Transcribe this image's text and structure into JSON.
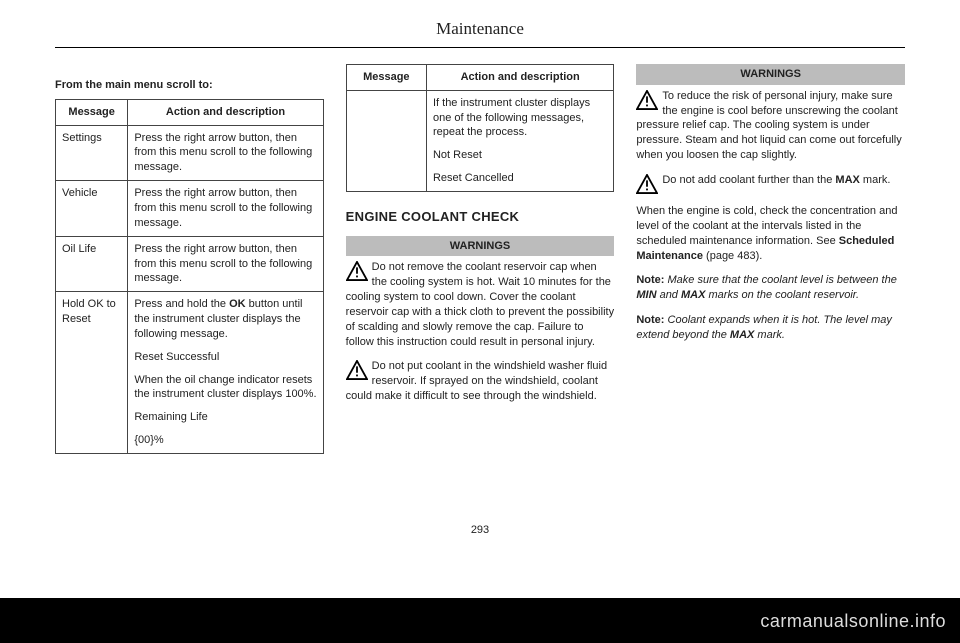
{
  "chapter_title": "Maintenance",
  "page_number": "293",
  "watermark": "carmanualsonline.info",
  "col1": {
    "intro": "From the main menu scroll to:",
    "headers": {
      "c1": "Message",
      "c2": "Action and description"
    },
    "rows": [
      {
        "msg": "Settings",
        "desc": [
          "Press the right arrow button, then from this menu scroll to the following message."
        ]
      },
      {
        "msg": "Vehicle",
        "desc": [
          "Press the right arrow button, then from this menu scroll to the following message."
        ]
      },
      {
        "msg": "Oil Life",
        "desc": [
          "Press the right arrow button, then from this menu scroll to the following message."
        ]
      },
      {
        "msg": "Hold OK to Reset",
        "desc": [
          "Press and hold the <b>OK</b> button until the instrument cluster displays the following message.",
          "Reset Successful",
          "When the oil change indicator resets the instrument cluster displays 100%.",
          "Remaining Life",
          "{00}%"
        ]
      }
    ]
  },
  "col2": {
    "headers": {
      "c1": "Message",
      "c2": "Action and description"
    },
    "row": {
      "msg": "",
      "desc": [
        "If the instrument cluster displays one of the following messages, repeat the process.",
        "Not Reset",
        "Reset Cancelled"
      ]
    },
    "heading": "ENGINE COOLANT CHECK",
    "warnings_label": "WARNINGS",
    "warnings": [
      "Do not remove the coolant reservoir cap when the cooling system is hot. Wait 10 minutes for the cooling system to cool down. Cover the coolant reservoir cap with a thick cloth to prevent the possibility of scalding and slowly remove the cap. Failure to follow this instruction could result in personal injury.",
      "Do not put coolant in the windshield washer fluid reservoir. If sprayed on the windshield, coolant could make it difficult to see through the windshield."
    ]
  },
  "col3": {
    "warnings_label": "WARNINGS",
    "warnings": [
      "To reduce the risk of personal injury, make sure the engine is cool before unscrewing the coolant pressure relief cap. The cooling system is under pressure. Steam and hot liquid can come out forcefully when you loosen the cap slightly.",
      "Do not add coolant further than the <b>MAX</b> mark."
    ],
    "body": "When the engine is cold, check the concentration and level of the coolant at the intervals listed in the scheduled maintenance information.  See <b>Scheduled Maintenance</b> (page 483).",
    "note1": "<span class=\"label\">Note:</span> Make sure that the coolant level is between the <b>MIN</b> and <b>MAX</b> marks on the coolant reservoir.",
    "note2": "<span class=\"label\">Note:</span>  Coolant expands when it is hot.  The level may extend beyond the <b>MAX</b> mark."
  }
}
